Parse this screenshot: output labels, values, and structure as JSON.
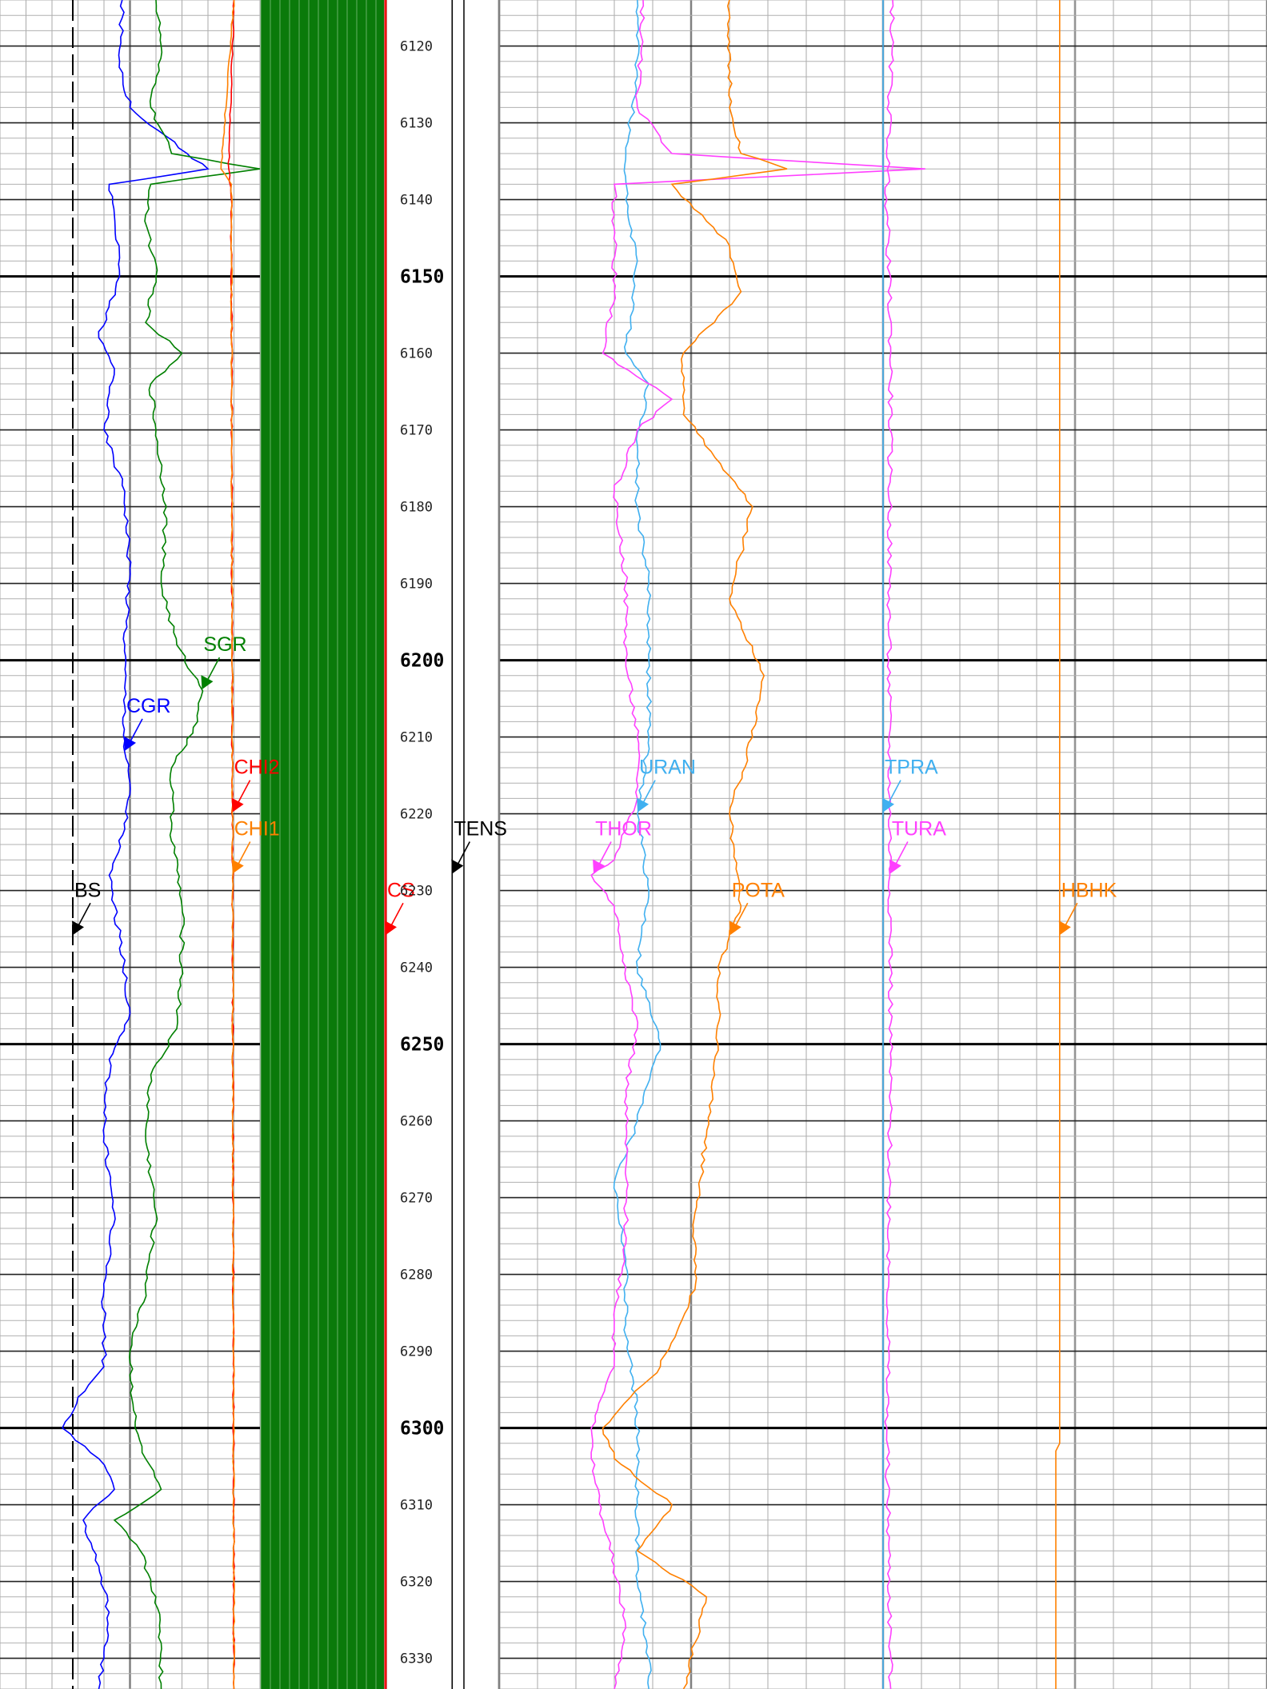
{
  "chart_data": {
    "type": "line",
    "title": "",
    "depth_axis": {
      "ylim": [
        6114,
        6334
      ],
      "minor_step": 2,
      "labeled_step": 10,
      "major_step": 50,
      "labels": [
        "6120",
        "6130",
        "6140",
        "6150",
        "6160",
        "6170",
        "6180",
        "6190",
        "6200",
        "6210",
        "6220",
        "6230",
        "6240",
        "6250",
        "6260",
        "6270",
        "6280",
        "6290",
        "6300",
        "6310",
        "6320",
        "6330"
      ],
      "major_labels": [
        "6150",
        "6200",
        "6250",
        "6300"
      ]
    },
    "tracks": [
      {
        "name": "track-1",
        "curves": [
          {
            "name": "BS",
            "color": "#000000",
            "style": "dashed",
            "xlim": [
              0,
              1
            ],
            "depth": [
              6114,
              6334
            ],
            "values": [
              0.28,
              0.28
            ],
            "label": {
              "text": "BS",
              "depth": 6235.8
            }
          },
          {
            "name": "CGR",
            "color": "#0000ff",
            "xlim": [
              0,
              1
            ],
            "depth": [
              6114,
              6122,
              6128,
              6134,
              6136,
              6138,
              6142,
              6150,
              6158,
              6162,
              6170,
              6178,
              6188,
              6198,
              6206,
              6212,
              6216,
              6222,
              6228,
              6236,
              6246,
              6252,
              6262,
              6272,
              6282,
              6292,
              6296,
              6300,
              6304,
              6308,
              6312,
              6318,
              6324,
              6330,
              6334
            ],
            "values": [
              0.47,
              0.46,
              0.5,
              0.72,
              0.8,
              0.42,
              0.44,
              0.46,
              0.38,
              0.44,
              0.4,
              0.48,
              0.5,
              0.48,
              0.48,
              0.48,
              0.5,
              0.48,
              0.42,
              0.46,
              0.5,
              0.42,
              0.4,
              0.44,
              0.4,
              0.4,
              0.3,
              0.24,
              0.38,
              0.44,
              0.32,
              0.38,
              0.42,
              0.4,
              0.38
            ],
            "label": {
              "text": "CGR",
              "depth": 6211.8
            }
          },
          {
            "name": "SGR",
            "color": "#008000",
            "xlim": [
              0,
              1
            ],
            "depth": [
              6114,
              6120,
              6128,
              6134,
              6136,
              6138,
              6142,
              6150,
              6156,
              6160,
              6164,
              6170,
              6180,
              6190,
              6198,
              6204,
              6208,
              6214,
              6222,
              6232,
              6240,
              6248,
              6254,
              6262,
              6272,
              6282,
              6290,
              6300,
              6304,
              6308,
              6312,
              6316,
              6322,
              6328,
              6334
            ],
            "values": [
              0.6,
              0.62,
              0.58,
              0.66,
              1.0,
              0.58,
              0.56,
              0.6,
              0.56,
              0.7,
              0.58,
              0.6,
              0.64,
              0.62,
              0.68,
              0.78,
              0.76,
              0.66,
              0.66,
              0.7,
              0.7,
              0.68,
              0.58,
              0.56,
              0.6,
              0.56,
              0.5,
              0.52,
              0.56,
              0.62,
              0.44,
              0.54,
              0.6,
              0.62,
              0.62
            ],
            "label": {
              "text": "SGR",
              "depth": 6203.8
            }
          },
          {
            "name": "CHI2",
            "color": "#ff0000",
            "xlim": [
              0,
              1
            ],
            "depth": [
              6114,
              6136,
              6140,
              6334
            ],
            "values": [
              0.9,
              0.88,
              0.89,
              0.9
            ],
            "label": {
              "text": "CHI2",
              "depth": 6219.8
            }
          },
          {
            "name": "CHI1",
            "color": "#ff8000",
            "xlim": [
              0,
              1
            ],
            "depth": [
              6114,
              6136,
              6138,
              6334
            ],
            "values": [
              0.9,
              0.85,
              0.89,
              0.9
            ],
            "label": {
              "text": "CHI1",
              "depth": 6227.8
            }
          }
        ]
      },
      {
        "name": "track-depth",
        "curves": [
          {
            "name": "CS",
            "color": "#ff0000",
            "xlim": [
              0,
              1
            ],
            "depth": [
              6114,
              6334
            ],
            "values": [
              0,
              0
            ],
            "label": {
              "text": "CS",
              "depth": 6235.8
            }
          },
          {
            "name": "TENS",
            "color": "#000000",
            "xlim": [
              0,
              1
            ],
            "depth": [
              6114,
              6334
            ],
            "values": [
              0.85,
              0.85
            ],
            "label": {
              "text": "TENS",
              "depth": 6227.8
            }
          }
        ]
      },
      {
        "name": "track-3",
        "curves": [
          {
            "name": "URAN",
            "color": "#40b0f0",
            "xlim": [
              0,
              1
            ],
            "depth": [
              6114,
              6124,
              6134,
              6140,
              6148,
              6160,
              6164,
              6172,
              6180,
              6190,
              6200,
              6210,
              6220,
              6230,
              6240,
              6250,
              6260,
              6268,
              6278,
              6288,
              6298,
              6310,
              6320,
              6330,
              6334
            ],
            "values": [
              0.24,
              0.24,
              0.22,
              0.22,
              0.24,
              0.22,
              0.26,
              0.24,
              0.24,
              0.26,
              0.26,
              0.26,
              0.24,
              0.26,
              0.24,
              0.28,
              0.24,
              0.2,
              0.22,
              0.22,
              0.24,
              0.24,
              0.24,
              0.26,
              0.26
            ],
            "label": {
              "text": "URAN",
              "depth": 6219.8
            }
          },
          {
            "name": "THOR",
            "color": "#ff40ff",
            "xlim": [
              0,
              1
            ],
            "depth": [
              6114,
              6128,
              6134,
              6136,
              6138,
              6142,
              6152,
              6160,
              6166,
              6170,
              6178,
              6190,
              6200,
              6210,
              6218,
              6226,
              6228,
              6232,
              6240,
              6248,
              6256,
              6266,
              6276,
              6286,
              6292,
              6300,
              6304,
              6312,
              6318,
              6326,
              6334
            ],
            "values": [
              0.25,
              0.24,
              0.3,
              0.74,
              0.2,
              0.2,
              0.2,
              0.18,
              0.3,
              0.24,
              0.2,
              0.22,
              0.22,
              0.24,
              0.24,
              0.2,
              0.16,
              0.2,
              0.22,
              0.24,
              0.22,
              0.22,
              0.22,
              0.2,
              0.2,
              0.16,
              0.16,
              0.18,
              0.2,
              0.22,
              0.2
            ],
            "label": {
              "text": "THOR",
              "depth": 6227.8
            }
          },
          {
            "name": "POTA",
            "color": "#ff8000",
            "xlim": [
              0,
              1
            ],
            "depth": [
              6114,
              6128,
              6134,
              6136,
              6138,
              6146,
              6152,
              6160,
              6168,
              6176,
              6180,
              6192,
              6202,
              6210,
              6220,
              6232,
              6240,
              6250,
              6262,
              6272,
              6282,
              6292,
              6300,
              6304,
              6310,
              6316,
              6322,
              6328,
              6334
            ],
            "values": [
              0.4,
              0.4,
              0.42,
              0.5,
              0.3,
              0.4,
              0.42,
              0.32,
              0.32,
              0.4,
              0.44,
              0.4,
              0.46,
              0.44,
              0.4,
              0.42,
              0.38,
              0.38,
              0.36,
              0.34,
              0.34,
              0.28,
              0.18,
              0.2,
              0.3,
              0.24,
              0.36,
              0.34,
              0.32
            ],
            "label": {
              "text": "POTA",
              "depth": 6235.8
            }
          }
        ]
      },
      {
        "name": "track-4",
        "curves": [
          {
            "name": "TPRA",
            "color": "#40b0f0",
            "xlim": [
              0,
              1
            ],
            "depth": [
              6114,
              6334
            ],
            "values": [
              0,
              0
            ],
            "label": {
              "text": "TPRA",
              "depth": 6219.8
            }
          },
          {
            "name": "TURA",
            "color": "#ff40ff",
            "xlim": [
              0,
              1
            ],
            "depth": [
              6114,
              6140,
              6160,
              6200,
              6240,
              6280,
              6300,
              6334
            ],
            "values": [
              0.05,
              0.02,
              0.04,
              0.03,
              0.04,
              0.03,
              0.02,
              0.04
            ],
            "label": {
              "text": "TURA",
              "depth": 6227.8
            }
          },
          {
            "name": "HBHK",
            "color": "#ff8000",
            "xlim": [
              0,
              1
            ],
            "depth": [
              6114,
              6302,
              6303,
              6334
            ],
            "values": [
              0.92,
              0.92,
              0.9,
              0.9
            ],
            "label": {
              "text": "HBHK",
              "depth": 6235.8
            }
          }
        ]
      }
    ]
  }
}
